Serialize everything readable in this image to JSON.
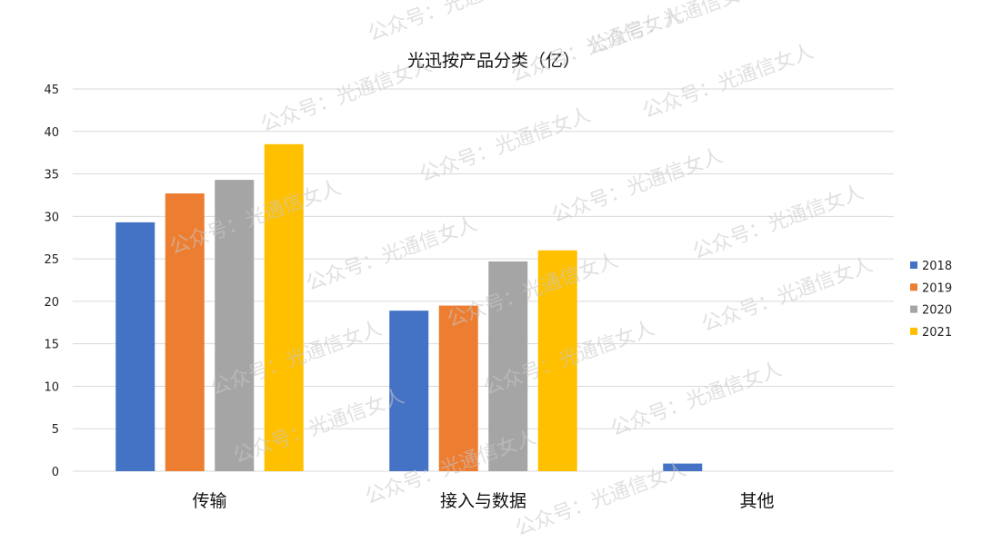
{
  "watermark": "公众号：光通信女人",
  "chart_data": {
    "type": "bar",
    "title": "光迅按产品分类（亿）",
    "xlabel": "",
    "ylabel": "",
    "categories": [
      "传输",
      "接入与数据",
      "其他"
    ],
    "series": [
      {
        "name": "2018",
        "color": "#4472c4",
        "values": [
          29.3,
          18.9,
          0.9
        ]
      },
      {
        "name": "2019",
        "color": "#ed7d31",
        "values": [
          32.7,
          19.5,
          null
        ]
      },
      {
        "name": "2020",
        "color": "#a5a5a5",
        "values": [
          34.3,
          24.7,
          null
        ]
      },
      {
        "name": "2021",
        "color": "#ffc000",
        "values": [
          38.5,
          26.0,
          null
        ]
      }
    ],
    "ylim": [
      0,
      45
    ],
    "yticks": [
      0,
      5,
      10,
      15,
      20,
      25,
      30,
      35,
      40,
      45
    ],
    "grid": true,
    "legend_position": "right"
  }
}
